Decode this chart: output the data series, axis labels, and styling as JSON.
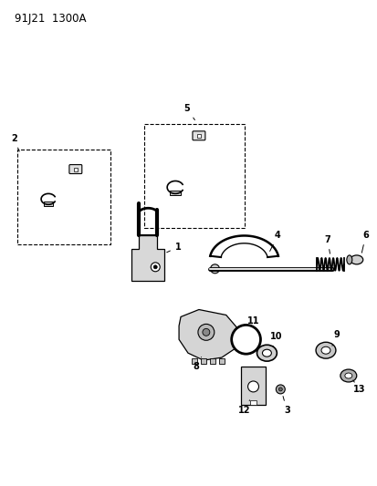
{
  "title": "91J21  1300A",
  "bg": "#ffffff",
  "lc": "#000000",
  "fig_w": 4.14,
  "fig_h": 5.33,
  "dpi": 100
}
